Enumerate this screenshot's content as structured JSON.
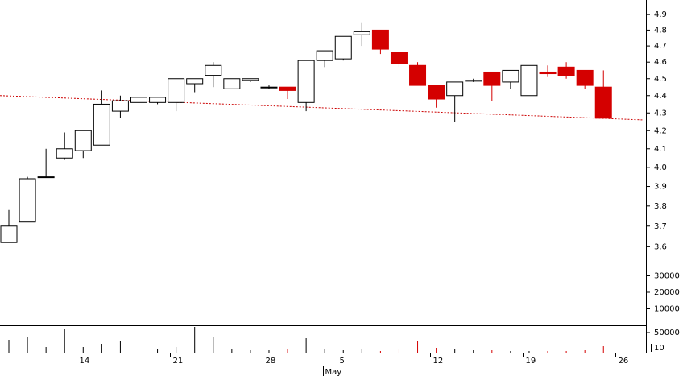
{
  "chart_data": {
    "type": "candlestick",
    "log_scale": true,
    "up_color": "#ffffff",
    "down_color": "#d40000",
    "categories": [
      null,
      null,
      null,
      null,
      "14",
      null,
      null,
      null,
      null,
      "21",
      null,
      null,
      null,
      null,
      "28",
      null,
      null,
      null,
      "5",
      null,
      null,
      null,
      null,
      "12",
      null,
      null,
      null,
      null,
      "19",
      null,
      null,
      null,
      null,
      "26"
    ],
    "month_label": {
      "index": 18,
      "label": "May"
    },
    "open": [
      3.62,
      3.72,
      3.95,
      4.05,
      4.09,
      4.12,
      4.31,
      4.36,
      4.36,
      4.36,
      4.47,
      4.52,
      4.44,
      4.49,
      4.45,
      4.45,
      4.36,
      4.61,
      4.62,
      4.77,
      4.8,
      4.66,
      4.58,
      4.46,
      4.4,
      4.49,
      4.54,
      4.48,
      4.4,
      4.54,
      4.57,
      4.55,
      4.45,
      null
    ],
    "high": [
      3.78,
      3.95,
      4.1,
      4.19,
      4.2,
      4.43,
      4.4,
      4.43,
      4.39,
      4.5,
      4.5,
      4.6,
      4.5,
      4.5,
      4.46,
      4.45,
      4.61,
      4.67,
      4.76,
      4.85,
      4.8,
      4.66,
      4.6,
      4.46,
      4.48,
      4.5,
      4.54,
      4.55,
      4.58,
      4.58,
      4.6,
      4.55,
      4.55,
      null
    ],
    "low": [
      3.62,
      3.72,
      3.95,
      4.04,
      4.05,
      4.12,
      4.27,
      4.33,
      4.35,
      4.31,
      4.42,
      4.45,
      4.44,
      4.48,
      4.44,
      4.38,
      4.31,
      4.57,
      4.61,
      4.7,
      4.65,
      4.57,
      4.46,
      4.33,
      4.25,
      4.48,
      4.37,
      4.44,
      4.4,
      4.51,
      4.5,
      4.44,
      4.27,
      null
    ],
    "close": [
      3.7,
      3.94,
      3.95,
      4.1,
      4.2,
      4.35,
      4.37,
      4.39,
      4.39,
      4.5,
      4.5,
      4.58,
      4.5,
      4.5,
      4.45,
      4.43,
      4.61,
      4.67,
      4.76,
      4.79,
      4.68,
      4.59,
      4.46,
      4.38,
      4.48,
      4.49,
      4.46,
      4.55,
      4.58,
      4.53,
      4.52,
      4.46,
      4.27,
      null
    ],
    "volume": [
      32000,
      40000,
      14000,
      58000,
      14000,
      22000,
      28000,
      10000,
      10000,
      14000,
      64000,
      38000,
      10000,
      6000,
      6000,
      8000,
      36000,
      8000,
      6000,
      8000,
      4000,
      8000,
      30000,
      12000,
      8000,
      6000,
      6000,
      4000,
      4000,
      4000,
      4000,
      6000,
      16000,
      null
    ],
    "ylim": [
      3.243,
      4.996
    ],
    "yticks": [
      3.6,
      3.7,
      3.8,
      3.9,
      {
        "value": 4,
        "label": "4.0"
      },
      4.1,
      4.2,
      4.3,
      4.4,
      4.5,
      4.6,
      4.7,
      4.8,
      4.9
    ],
    "y2lim": [
      0,
      197000
    ],
    "y2ticks": [
      10000,
      20000,
      30000
    ],
    "volume_ylim": [
      0,
      66000
    ],
    "volume_yticks": [
      50000
    ],
    "volume_scale_label": "10",
    "trendline": {
      "color": "#cc0000",
      "values": [
        4.4,
        4.26
      ]
    }
  }
}
